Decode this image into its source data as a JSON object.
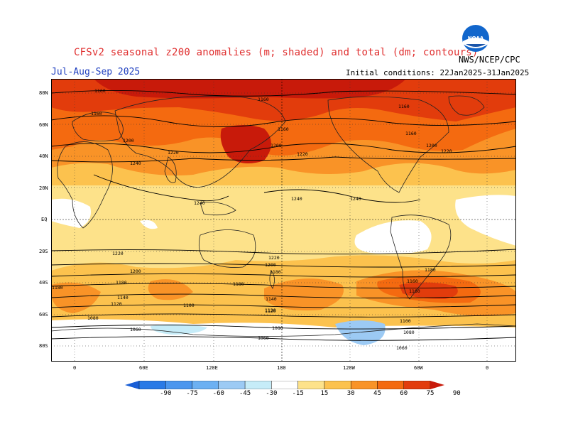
{
  "title": "CFSv2 seasonal z200 anomalies (m; shaded) and total (dm; contours)",
  "season": "Jul-Aug-Sep 2025",
  "initial_conditions": "Initial conditions: 22Jan2025-31Jan2025",
  "org": "NWS/NCEP/CPC",
  "logo_text": "NOAA",
  "lat_labels": [
    "80N",
    "60N",
    "40N",
    "20N",
    "EQ",
    "20S",
    "40S",
    "60S",
    "80S"
  ],
  "lon_labels": [
    "0",
    "60E",
    "120E",
    "180",
    "120W",
    "60W",
    "0"
  ],
  "contour_labels": [
    "1160",
    "1160",
    "1160",
    "1160",
    "1160",
    "1160",
    "1200",
    "1200",
    "1200",
    "1220",
    "1220",
    "1220",
    "1240",
    "1240",
    "1240",
    "1240",
    "1220",
    "1220",
    "1200",
    "1200",
    "1180",
    "1180",
    "1180",
    "1160",
    "1180",
    "1160",
    "1140",
    "1140",
    "1120",
    "1120",
    "1100",
    "1100",
    "1080",
    "1060",
    "1080",
    "1080",
    "1060",
    "1060",
    "1180",
    "1120"
  ],
  "colorbar": {
    "ticks": [
      "-90",
      "-75",
      "-60",
      "-45",
      "-30",
      "-15",
      "15",
      "30",
      "45",
      "60",
      "75",
      "90"
    ],
    "colors": [
      "#1a5fd6",
      "#2a7ae6",
      "#4b96ee",
      "#6cb0f2",
      "#9ccaf4",
      "#c6ecf8",
      "#ffffff",
      "#fde28a",
      "#fcc24e",
      "#f99327",
      "#f46a10",
      "#e23c0c",
      "#c81a0a"
    ]
  }
}
